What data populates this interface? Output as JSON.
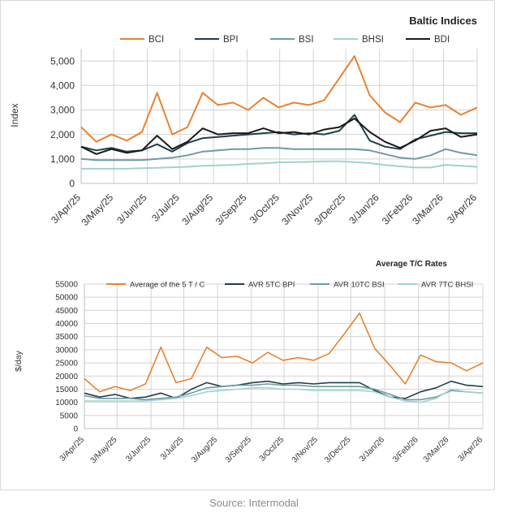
{
  "source": "Source: Intermodal",
  "chart_data": [
    {
      "type": "line",
      "title": "Baltic Indices",
      "ylabel": "Index",
      "xlabel": "",
      "ylim": [
        0,
        5500
      ],
      "yticks": [
        0,
        1000,
        2000,
        3000,
        4000,
        5000
      ],
      "ytick_labels": [
        "0",
        "1,000",
        "2,000",
        "3,000",
        "4,000",
        "5,000"
      ],
      "grid": true,
      "legend": "top",
      "x_dates": [
        "2025-04-03",
        "2025-04-17",
        "2025-05-01",
        "2025-05-15",
        "2025-05-29",
        "2025-06-12",
        "2025-06-26",
        "2025-07-10",
        "2025-07-24",
        "2025-08-07",
        "2025-08-21",
        "2025-09-04",
        "2025-09-18",
        "2025-10-02",
        "2025-10-16",
        "2025-10-30",
        "2025-11-13",
        "2025-11-27",
        "2025-12-11",
        "2025-12-25",
        "2026-01-08",
        "2026-01-22",
        "2026-02-05",
        "2026-02-19",
        "2026-03-05",
        "2026-03-19",
        "2026-04-03"
      ],
      "tick_labels": [
        "3/Apr/25",
        "3/May/25",
        "3/Jun/25",
        "3/Jul/25",
        "3/Aug/25",
        "3/Sep/25",
        "3/Oct/25",
        "3/Nov/25",
        "3/Dec/25",
        "3/Jan/26",
        "3/Feb/26",
        "3/Mar/26",
        "3/Apr/26"
      ],
      "series": [
        {
          "name": "BCI",
          "color": "#e8822e",
          "values": [
            2300,
            1700,
            2000,
            1750,
            2100,
            3700,
            2000,
            2300,
            3700,
            3200,
            3300,
            3000,
            3500,
            3100,
            3300,
            3200,
            3400,
            4300,
            5200,
            3600,
            2900,
            2500,
            3300,
            3100,
            3200,
            2800,
            3100
          ]
        },
        {
          "name": "BPI",
          "color": "#1f3f49",
          "values": [
            1500,
            1350,
            1450,
            1300,
            1350,
            1600,
            1300,
            1650,
            1850,
            1900,
            1950,
            2000,
            2050,
            2100,
            2000,
            2050,
            2000,
            2150,
            2800,
            1750,
            1500,
            1400,
            1800,
            1950,
            2100,
            2050,
            2050
          ]
        },
        {
          "name": "BSI",
          "color": "#6f9aa3",
          "values": [
            1000,
            950,
            950,
            950,
            950,
            1000,
            1050,
            1150,
            1300,
            1350,
            1400,
            1400,
            1450,
            1450,
            1400,
            1400,
            1400,
            1400,
            1400,
            1350,
            1200,
            1050,
            1000,
            1150,
            1400,
            1250,
            1150
          ]
        },
        {
          "name": "BHSI",
          "color": "#9fd3cf",
          "values": [
            600,
            600,
            600,
            600,
            620,
            640,
            660,
            680,
            720,
            740,
            760,
            800,
            820,
            860,
            870,
            880,
            900,
            900,
            870,
            830,
            750,
            700,
            650,
            650,
            760,
            720,
            680
          ]
        },
        {
          "name": "BDI",
          "color": "#1a1a1a",
          "values": [
            1500,
            1200,
            1400,
            1250,
            1350,
            1950,
            1400,
            1700,
            2250,
            2000,
            2050,
            2050,
            2250,
            2050,
            2100,
            2000,
            2200,
            2300,
            2650,
            2100,
            1700,
            1450,
            1750,
            2150,
            2250,
            1900,
            2000
          ]
        }
      ]
    },
    {
      "type": "line",
      "title": "Average T/C Rates",
      "ylabel": "$/day",
      "xlabel": "",
      "ylim": [
        0,
        55000
      ],
      "yticks": [
        0,
        5000,
        10000,
        15000,
        20000,
        25000,
        30000,
        35000,
        40000,
        45000,
        50000,
        55000
      ],
      "ytick_labels": [
        "0",
        "5000",
        "10000",
        "15000",
        "20000",
        "25000",
        "30000",
        "35000",
        "40000",
        "45000",
        "50000",
        "55000"
      ],
      "grid": true,
      "legend": "top",
      "x_dates": [
        "2025-04-03",
        "2025-04-17",
        "2025-05-01",
        "2025-05-15",
        "2025-05-29",
        "2025-06-12",
        "2025-06-26",
        "2025-07-10",
        "2025-07-24",
        "2025-08-07",
        "2025-08-21",
        "2025-09-04",
        "2025-09-18",
        "2025-10-02",
        "2025-10-16",
        "2025-10-30",
        "2025-11-13",
        "2025-11-27",
        "2025-12-11",
        "2025-12-25",
        "2026-01-08",
        "2026-01-22",
        "2026-02-05",
        "2026-02-19",
        "2026-03-05",
        "2026-03-19",
        "2026-04-03"
      ],
      "tick_labels": [
        "3/Apr/25",
        "3/May/25",
        "3/Jun/25",
        "3/Jul/25",
        "3/Aug/25",
        "3/Sep/25",
        "3/Oct/25",
        "3/Nov/25",
        "3/Dec/25",
        "3/Jan/26",
        "3/Feb/26",
        "3/Mar/26",
        "3/Apr/26"
      ],
      "series": [
        {
          "name": "Average of the 5 T / C",
          "color": "#e8822e",
          "values": [
            19000,
            14000,
            16000,
            14500,
            17000,
            31000,
            17500,
            19000,
            31000,
            27000,
            27500,
            25000,
            29000,
            26000,
            27000,
            26000,
            28500,
            36000,
            44000,
            30500,
            24000,
            17000,
            28000,
            25500,
            25000,
            22000,
            25000
          ]
        },
        {
          "name": "AVR 5TC BPI",
          "color": "#1f3f49",
          "values": [
            13500,
            12000,
            13000,
            11500,
            12000,
            13500,
            11500,
            15000,
            17500,
            16000,
            16500,
            17500,
            18000,
            17000,
            17500,
            17000,
            17500,
            17500,
            17500,
            14500,
            12000,
            11500,
            14000,
            15500,
            18000,
            16500,
            16000
          ]
        },
        {
          "name": "AVR 10TC BSI",
          "color": "#6f9aa3",
          "values": [
            12500,
            11500,
            11500,
            11500,
            11000,
            11500,
            12000,
            13500,
            15500,
            16000,
            16500,
            16500,
            17000,
            16500,
            16500,
            16000,
            16000,
            16000,
            16000,
            15000,
            13000,
            11000,
            11000,
            12000,
            14500,
            14000,
            13500
          ]
        },
        {
          "name": "AVR 7TC BHSI",
          "color": "#9fd3cf",
          "values": [
            10500,
            10500,
            10500,
            10500,
            10500,
            11000,
            11500,
            12500,
            14000,
            14500,
            15000,
            15500,
            15500,
            15000,
            15000,
            14500,
            14500,
            14500,
            14500,
            14000,
            12000,
            10500,
            10000,
            11500,
            15000,
            14000,
            13500
          ]
        }
      ]
    }
  ]
}
